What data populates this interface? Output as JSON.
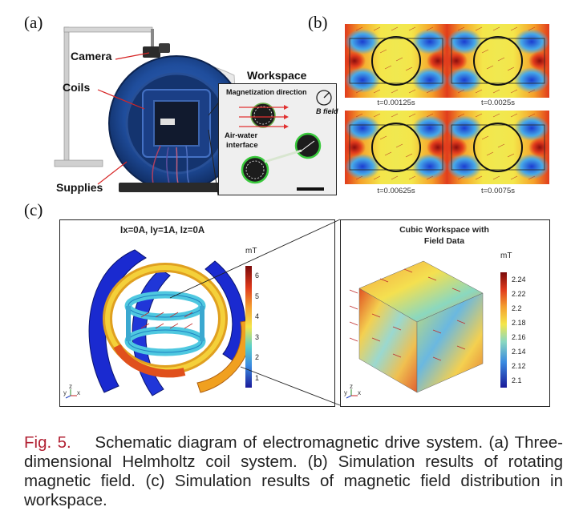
{
  "panel_labels": {
    "a": "(a)",
    "b": "(b)",
    "c": "(c)"
  },
  "panel_a": {
    "camera": "Camera",
    "coils": "Coils",
    "supplies": "Supplies",
    "workspace": "Workspace",
    "magnetization": "Magnetization direction",
    "b_field": "B field",
    "air_water_1": "Air-water",
    "air_water_2": "interface"
  },
  "panel_b": {
    "times": [
      "t=0.00125s",
      "t=0.0025s",
      "t=0.00625s",
      "t=0.0075s"
    ]
  },
  "panel_c": {
    "left": {
      "title": "Ix=0A, Iy=1A, Iz=0A",
      "unit": "mT",
      "ticks": [
        "6",
        "5",
        "4",
        "3",
        "2",
        "1"
      ]
    },
    "right": {
      "title_1": "Cubic Workspace with",
      "title_2": "Field Data",
      "unit": "mT",
      "ticks": [
        "2.24",
        "2.22",
        "2.2",
        "2.18",
        "2.16",
        "2.14",
        "2.12",
        "2.1"
      ]
    },
    "axis": {
      "y": "y",
      "z": "z",
      "x": "x"
    }
  },
  "caption": {
    "figure": "Fig. 5.",
    "text": "Schematic diagram of electromagnetic drive system. (a) Three-dimensional Helmholtz coil system. (b) Simulation results of rotating magnetic field. (c) Simulation results of magnetic field distribution in workspace."
  }
}
